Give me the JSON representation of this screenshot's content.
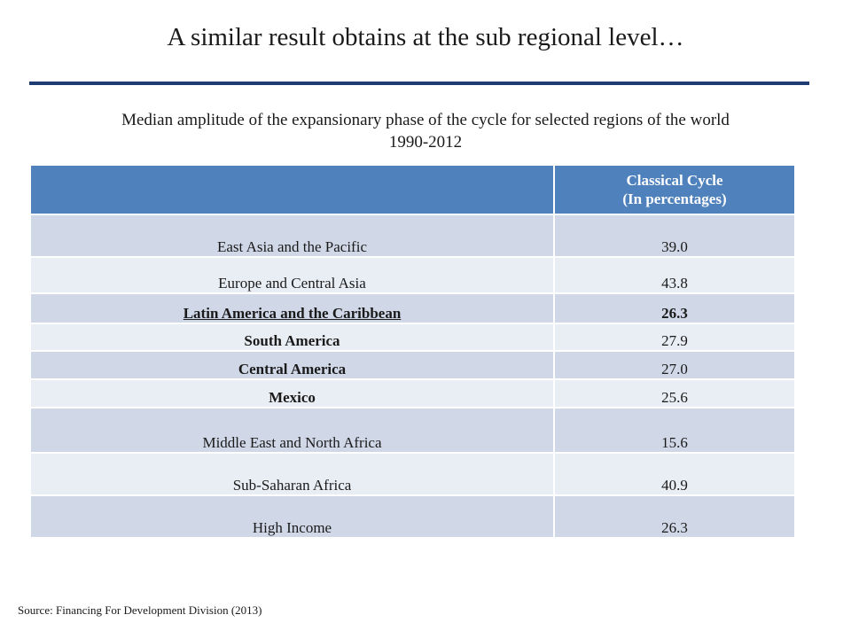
{
  "title": "A similar result obtains at the sub regional level…",
  "caption_line1": "Median amplitude of the expansionary phase of the cycle for selected regions of the world",
  "caption_line2": "1990-2012",
  "table": {
    "header_region": "",
    "header_value_line1": "Classical Cycle",
    "header_value_line2": "(In percentages)",
    "rows": [
      {
        "region": "East Asia and the Pacific",
        "value": "39.0"
      },
      {
        "region": "Europe and Central Asia",
        "value": "43.8"
      },
      {
        "region": "Latin America and the Caribbean",
        "value": "26.3"
      },
      {
        "region": "South America",
        "value": "27.9"
      },
      {
        "region": "Central America",
        "value": "27.0"
      },
      {
        "region": "Mexico",
        "value": "25.6"
      },
      {
        "region": "Middle East and North Africa",
        "value": "15.6"
      },
      {
        "region": "Sub-Saharan Africa",
        "value": "40.9"
      },
      {
        "region": "High Income",
        "value": "26.3"
      }
    ]
  },
  "source": "Source: Financing For Development Division (2013)",
  "colors": {
    "header_fill": "#4f81bd",
    "row_dark": "#d0d8e8",
    "row_light": "#e9edf4",
    "title_rule": "#1f3c73"
  }
}
